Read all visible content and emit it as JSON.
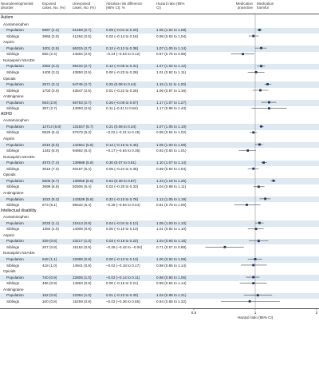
{
  "headers": {
    "disorder": "Neurodevelopmental disorder",
    "exposed": "Exposed cases, No. (%)",
    "unexposed": "Unexposed cases, No. (%)",
    "ard": "Absolute risk difference (95% CI), %",
    "hr": "Hazard ratio (95% CI)",
    "protective": "Medication protective",
    "harmful": "Medication harmful"
  },
  "axis": {
    "label": "Hazard ratio (95% CI)",
    "ticks": [
      "0.5",
      "1",
      "2"
    ],
    "tick_values": [
      0.5,
      1,
      2
    ]
  },
  "chart_data": {
    "type": "forest",
    "x_scale": "log",
    "xlim": [
      0.5,
      2
    ],
    "reference_line": 1,
    "xlabel": "Hazard ratio (95% CI)",
    "sections": [
      {
        "name": "Autism",
        "groups": [
          {
            "name": "Acetaminophen",
            "rows": [
              {
                "label": "Population",
                "exposed": "5857 (1.2)",
                "unexposed": "61459 (2.7)",
                "ard": "0.09 (–0.01 to 0.20)",
                "hr_text": "1.05 (1.02 to 1.08)",
                "hr": 1.05,
                "lo": 1.02,
                "hi": 1.08
              },
              {
                "label": "Siblings",
                "exposed": "3956 (3.0)",
                "unexposed": "41294 (2.5)",
                "ard": "0.02 (–0.14 to 0.18)",
                "hr_text": "0.98 (0.93 to 1.04)",
                "hr": 0.98,
                "lo": 0.93,
                "hi": 1.04
              }
            ]
          },
          {
            "name": "Aspirin",
            "rows": [
              {
                "label": "Population",
                "exposed": "1001 (2.5)",
                "unexposed": "66315 (2.7)",
                "ard": "0.12 (–0.12 to 0.38)",
                "hr_text": "1.07 (1.00 to 1.14)",
                "hr": 1.07,
                "lo": 1.0,
                "hi": 1.14
              },
              {
                "label": "Siblings",
                "exposed": "656 (2.4)",
                "unexposed": "44594 (2.6)",
                "ard": "–0.24 (–0.54 to 0.12)",
                "hr_text": "0.87 (0.76 to 0.99)",
                "hr": 0.87,
                "lo": 0.76,
                "hi": 0.99
              }
            ]
          },
          {
            "name": "Nonaspirin NSAIDs",
            "rows": [
              {
                "label": "Population",
                "exposed": "2082 (3.4)",
                "unexposed": "65234 (2.7)",
                "ard": "0.12 (–0.06 to 0.31)",
                "hr_text": "1.07 (1.02 to 1.12)",
                "hr": 1.07,
                "lo": 1.02,
                "hi": 1.12
              },
              {
                "label": "Siblings",
                "exposed": "1400 (3.2)",
                "unexposed": "43850 (2.5)",
                "ard": "0.00 (–0.23 to 0.28)",
                "hr_text": "1.01 (0.92 to 1.11)",
                "hr": 1.01,
                "lo": 0.92,
                "hi": 1.11
              }
            ]
          },
          {
            "name": "Opioids",
            "rows": [
              {
                "label": "Population",
                "exposed": "2571 (3.1)",
                "unexposed": "64745 (2.7)",
                "ard": "0.25 (0.08 to 0.44)",
                "hr_text": "1.15 (1.11 to 1.20)",
                "hr": 1.15,
                "lo": 1.11,
                "hi": 1.2
              },
              {
                "label": "Siblings",
                "exposed": "1703 (3.0)",
                "unexposed": "43547 (2.5)",
                "ard": "0.01 (–0.22 to 0.25)",
                "hr_text": "1.06 (0.97 to 1.16)",
                "hr": 1.06,
                "lo": 0.97,
                "hi": 1.16
              }
            ]
          },
          {
            "name": "Antimigraine",
            "rows": [
              {
                "label": "Population",
                "exposed": "563 (2.9)",
                "unexposed": "66753 (2.7)",
                "ard": "0.26 (–0.06 to 0.67)",
                "hr_text": "1.17 (1.07 to 1.27)",
                "hr": 1.17,
                "lo": 1.07,
                "hi": 1.27
              },
              {
                "label": "Siblings",
                "exposed": "357 (2.7)",
                "unexposed": "44893 (2.6)",
                "ard": "0.11 (–0.41 to 0.84)",
                "hr_text": "1.17 (0.96 to 1.43)",
                "hr": 1.17,
                "lo": 0.96,
                "hi": 1.43
              }
            ]
          }
        ]
      },
      {
        "name": "ADHD",
        "groups": [
          {
            "name": "Acetaminophen",
            "rows": [
              {
                "label": "Population",
                "exposed": "12714 (6.8)",
                "unexposed": "131847 (5.7)",
                "ard": "0.21 (0.08 to 0.34)",
                "hr_text": "1.07 (1.05 to 1.10)",
                "hr": 1.07,
                "lo": 1.05,
                "hi": 1.1
              },
              {
                "label": "Siblings",
                "exposed": "8526 (6.4)",
                "unexposed": "87679 (5.3)",
                "ard": "–0.02 (–0.21 to 0.15)",
                "hr_text": "0.98 (0.94 to 1.02)",
                "hr": 0.98,
                "lo": 0.94,
                "hi": 1.02
              }
            ]
          },
          {
            "name": "Aspirin",
            "rows": [
              {
                "label": "Population",
                "exposed": "2010 (5.0)",
                "unexposed": "142551 (5.8)",
                "ard": "0.14 (–0.16 to 0.45)",
                "hr_text": "1.05 (1.00 to 1.09)",
                "hr": 1.05,
                "lo": 1.0,
                "hi": 1.09
              },
              {
                "label": "Siblings",
                "exposed": "1343 (5.0)",
                "unexposed": "94862 (5.4)",
                "ard": "–0.17 (–0.64 to 0.35)",
                "hr_text": "0.92 (0.83 to 1.01)",
                "hr": 0.92,
                "lo": 0.83,
                "hi": 1.01
              }
            ]
          },
          {
            "name": "Nonaspirin NSAIDs",
            "rows": [
              {
                "label": "Population",
                "exposed": "4573 (7.4)",
                "unexposed": "139988 (5.8)",
                "ard": "0.30 (0.07 to 0.51)",
                "hr_text": "1.10 (1.07 to 1.14)",
                "hr": 1.1,
                "lo": 1.07,
                "hi": 1.14
              },
              {
                "label": "Siblings",
                "exposed": "3018 (7.0)",
                "unexposed": "93187 (5.4)",
                "ard": "0.05 (–0.24 to 0.35)",
                "hr_text": "0.98 (0.92 to 1.04)",
                "hr": 0.98,
                "lo": 0.92,
                "hi": 1.04
              }
            ]
          },
          {
            "name": "Opioids",
            "rows": [
              {
                "label": "Population",
                "exposed": "5506 (6.7)",
                "unexposed": "139055 (5.8)",
                "ard": "0.64 (0.39 to 0.87)",
                "hr_text": "1.23 (1.19 to 1.26)",
                "hr": 1.23,
                "lo": 1.19,
                "hi": 1.26
              },
              {
                "label": "Siblings",
                "exposed": "3699 (6.6)",
                "unexposed": "92506 (5.4)",
                "ard": "0.02 (–0.30 to 0.33)",
                "hr_text": "1.04 (0.98 to 1.11)",
                "hr": 1.04,
                "lo": 0.98,
                "hi": 1.11
              }
            ]
          },
          {
            "name": "Antimigraine",
            "rows": [
              {
                "label": "Population",
                "exposed": "1022 (5.2)",
                "unexposed": "143539 (5.8)",
                "ard": "0.32 (–0.10 to 0.78)",
                "hr_text": "1.12 (1.05 to 1.19)",
                "hr": 1.12,
                "lo": 1.05,
                "hi": 1.19
              },
              {
                "label": "Siblings",
                "exposed": "673 (5.1)",
                "unexposed": "95532 (5.4)",
                "ard": "–0.28 (–0.84 to 0.44)",
                "hr_text": "0.91 (0.79 to 1.06)",
                "hr": 0.91,
                "lo": 0.79,
                "hi": 1.06
              }
            ]
          }
        ]
      },
      {
        "name": "Intellectual disability",
        "groups": [
          {
            "name": "Acetaminophen",
            "rows": [
              {
                "label": "Population",
                "exposed": "2033 (1.1)",
                "unexposed": "21513 (0.9)",
                "ard": "0.04 (–0.04 to 0.12)",
                "hr_text": "1.05 (1.00 to 1.10)",
                "hr": 1.05,
                "lo": 1.0,
                "hi": 1.1
              },
              {
                "label": "Siblings",
                "exposed": "1350 (1.0)",
                "unexposed": "14009 (0.9)",
                "ard": "0.00 (–0.10 to 0.13)",
                "hr_text": "1.01 (0.92 to 1.10)",
                "hr": 1.01,
                "lo": 0.92,
                "hi": 1.1
              }
            ]
          },
          {
            "name": "Aspirin",
            "rows": [
              {
                "label": "Population",
                "exposed": "329 (0.8)",
                "unexposed": "23217 (1.0)",
                "ard": "0.03 (–0.16 to 0.22)",
                "hr_text": "1.04 (0.93 to 1.16)",
                "hr": 1.04,
                "lo": 0.93,
                "hi": 1.16
              },
              {
                "label": "Siblings",
                "exposed": "207 (0.8)",
                "unexposed": "15152 (0.9)",
                "ard": "–0.26 (–0.42 to –0.04)",
                "hr_text": "0.71 (0.57 to 0.88)",
                "hr": 0.71,
                "lo": 0.57,
                "hi": 0.88
              }
            ]
          },
          {
            "name": "Nonaspirin NSAIDs",
            "rows": [
              {
                "label": "Population",
                "exposed": "648 (1.1)",
                "unexposed": "22898 (0.9)",
                "ard": "0.00 (–0.13 to 0.13)",
                "hr_text": "1.00 (0.92 to 1.08)",
                "hr": 1.0,
                "lo": 0.92,
                "hi": 1.08
              },
              {
                "label": "Siblings",
                "exposed": "418 (1.0)",
                "unexposed": "14941 (0.9)",
                "ard": "–0.02 (–0.18 to 0.17)",
                "hr_text": "0.98 (0.85 to 1.14)",
                "hr": 0.98,
                "lo": 0.85,
                "hi": 1.14
              }
            ]
          },
          {
            "name": "Opioids",
            "rows": [
              {
                "label": "Population",
                "exposed": "740 (0.9)",
                "unexposed": "22806 (1.0)",
                "ard": "–0.02 (–0.14 to 0.11)",
                "hr_text": "0.98 (0.90 to 1.05)",
                "hr": 0.98,
                "lo": 0.9,
                "hi": 1.05
              },
              {
                "label": "Siblings",
                "exposed": "496 (0.9)",
                "unexposed": "14863 (0.9)",
                "ard": "0.00 (–0.16 to 0.21)",
                "hr_text": "0.98 (0.84 to 1.14)",
                "hr": 0.98,
                "lo": 0.84,
                "hi": 1.14
              }
            ]
          },
          {
            "name": "Antimigraine",
            "rows": [
              {
                "label": "Population",
                "exposed": "152 (0.8)",
                "unexposed": "23394 (1.0)",
                "ard": "0.01 (–0.23 to 0.30)",
                "hr_text": "1.03 (0.88 to 1.21)",
                "hr": 1.03,
                "lo": 0.88,
                "hi": 1.21
              },
              {
                "label": "Siblings",
                "exposed": "100 (0.8)",
                "unexposed": "15259 (0.9)",
                "ard": "–0.02 (–0.36 to 0.56)",
                "hr_text": "0.94 (0.68 to 1.32)",
                "hr": 0.94,
                "lo": 0.68,
                "hi": 1.32
              }
            ]
          }
        ]
      }
    ]
  }
}
